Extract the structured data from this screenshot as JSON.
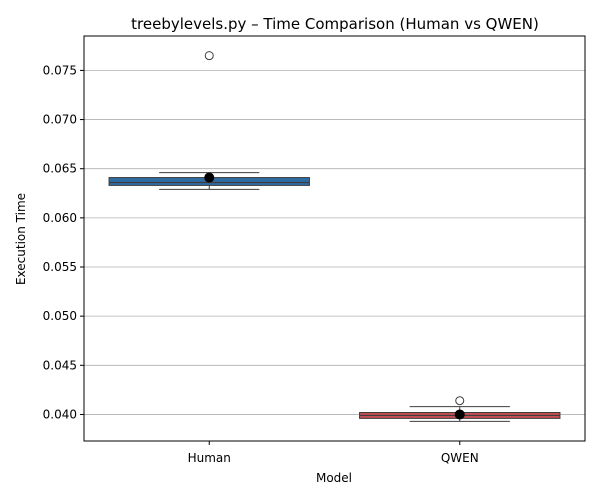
{
  "chart_data": {
    "type": "box",
    "title": "treebylevels.py – Time Comparison (Human vs QWEN)",
    "xlabel": "Model",
    "ylabel": "Execution Time",
    "ylim": [
      0.0373,
      0.0785
    ],
    "yticks": [
      0.04,
      0.045,
      0.05,
      0.055,
      0.06,
      0.065,
      0.07,
      0.075
    ],
    "ytick_labels": [
      "0.040",
      "0.045",
      "0.050",
      "0.055",
      "0.060",
      "0.065",
      "0.070",
      "0.075"
    ],
    "grid": "horizontal",
    "categories": [
      "Human",
      "QWEN"
    ],
    "series": [
      {
        "category": "Human",
        "color": "#2e6da4",
        "whisker_low": 0.0629,
        "q1": 0.0633,
        "median": 0.0636,
        "q3": 0.0641,
        "whisker_high": 0.0646,
        "mean": 0.0641,
        "outliers": [
          0.0765
        ]
      },
      {
        "category": "QWEN",
        "color": "#c44e52",
        "whisker_low": 0.0393,
        "q1": 0.0396,
        "median": 0.0399,
        "q3": 0.0402,
        "whisker_high": 0.0408,
        "mean": 0.04,
        "outliers": [
          0.0414
        ]
      }
    ]
  }
}
